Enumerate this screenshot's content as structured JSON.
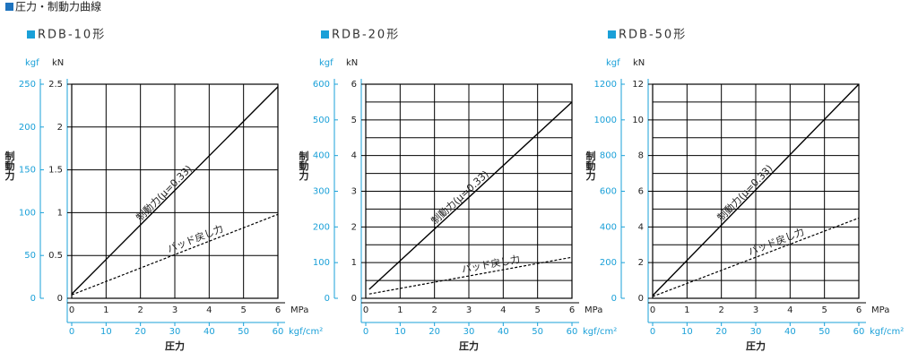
{
  "page_title": "圧力・制動力曲線",
  "chart_data": [
    {
      "type": "line",
      "title": "RDB-10形",
      "x_label": "圧力",
      "x_unit": "MPa",
      "x2_unit": "kgf/cm²",
      "y_label": "制動力",
      "y_unit": "kN",
      "y2_unit": "kgf",
      "x": [
        0,
        6
      ],
      "xlim": [
        0,
        6
      ],
      "xticks": [
        0,
        1,
        2,
        3,
        4,
        5,
        6
      ],
      "x2lim": [
        0,
        60
      ],
      "x2ticks": [
        0,
        10,
        20,
        30,
        40,
        50,
        60
      ],
      "ylim": [
        0,
        2.5
      ],
      "yticks": [
        0,
        0.5,
        1,
        1.5,
        2,
        2.5
      ],
      "minor_yticks": [],
      "y2lim": [
        0,
        250
      ],
      "y2ticks": [
        0,
        50,
        100,
        150,
        200,
        250
      ],
      "grid": true,
      "series": [
        {
          "name": "制動力(μ=0.33)",
          "color": "#000000",
          "dashed": false,
          "values": [
            0.05,
            2.47
          ]
        },
        {
          "name": "パッド戻し力",
          "color": "#000000",
          "dashed": true,
          "values": [
            0.04,
            0.98
          ]
        }
      ]
    },
    {
      "type": "line",
      "title": "RDB-20形",
      "x_label": "圧力",
      "x_unit": "MPa",
      "x2_unit": "kgf/cm²",
      "y_label": "制動力",
      "y_unit": "kN",
      "y2_unit": "kgf",
      "x": [
        0.1,
        6
      ],
      "xlim": [
        0,
        6
      ],
      "xticks": [
        0,
        1,
        2,
        3,
        4,
        5,
        6
      ],
      "x2lim": [
        0,
        60
      ],
      "x2ticks": [
        0,
        10,
        20,
        30,
        40,
        50,
        60
      ],
      "ylim": [
        0,
        6
      ],
      "yticks": [
        0,
        1,
        2,
        3,
        4,
        5,
        6
      ],
      "minor_yticks": [
        0.5,
        1.5,
        2.5,
        3.5,
        4.5,
        5.5
      ],
      "y2lim": [
        0,
        600
      ],
      "y2ticks": [
        0,
        100,
        200,
        300,
        400,
        500,
        600
      ],
      "grid": true,
      "series": [
        {
          "name": "制動力(μ=0.33)",
          "color": "#000000",
          "dashed": false,
          "values": [
            0.25,
            5.5
          ]
        },
        {
          "name": "パッド戻し力",
          "color": "#000000",
          "dashed": true,
          "values": [
            0.12,
            1.15
          ]
        }
      ]
    },
    {
      "type": "line",
      "title": "RDB-50形",
      "x_label": "圧力",
      "x_unit": "MPa",
      "x2_unit": "kgf/cm²",
      "y_label": "制動力",
      "y_unit": "kN",
      "y2_unit": "kgf",
      "x": [
        0,
        6
      ],
      "xlim": [
        0,
        6
      ],
      "xticks": [
        0,
        1,
        2,
        3,
        4,
        5,
        6
      ],
      "x2lim": [
        0,
        60
      ],
      "x2ticks": [
        0,
        10,
        20,
        30,
        40,
        50,
        60
      ],
      "ylim": [
        0,
        12
      ],
      "yticks": [
        0,
        2,
        4,
        6,
        8,
        10,
        12
      ],
      "minor_yticks": [
        1,
        3,
        5,
        7,
        9,
        11
      ],
      "y2lim": [
        0,
        1200
      ],
      "y2ticks": [
        0,
        200,
        400,
        600,
        800,
        1000,
        1200
      ],
      "grid": true,
      "series": [
        {
          "name": "制動力(μ=0.33)",
          "color": "#000000",
          "dashed": false,
          "values": [
            0.15,
            12
          ]
        },
        {
          "name": "パッド戻し力",
          "color": "#000000",
          "dashed": true,
          "values": [
            0.1,
            4.5
          ]
        }
      ]
    }
  ]
}
